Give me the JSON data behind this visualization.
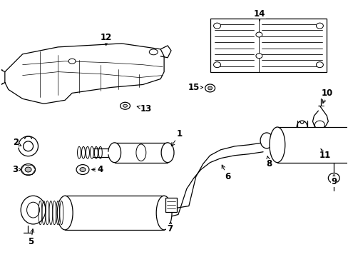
{
  "background_color": "#ffffff",
  "line_color": "#000000",
  "fig_width": 4.89,
  "fig_height": 3.6,
  "dpi": 100,
  "label_fontsize": 8.5
}
